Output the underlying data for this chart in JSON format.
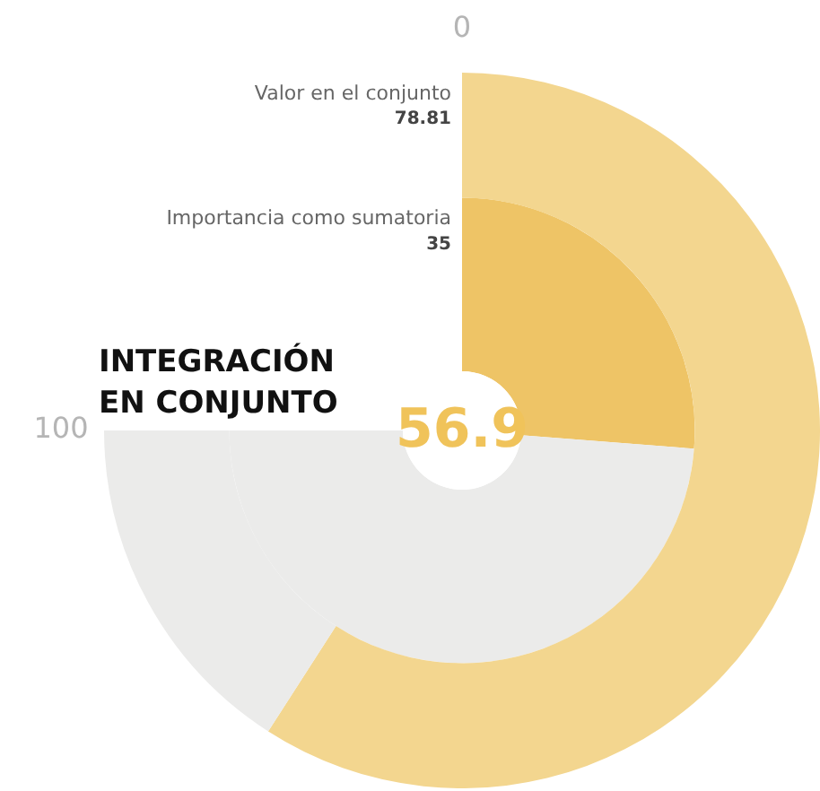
{
  "chart_data": {
    "type": "other",
    "title": "INTEGRACIÓN EN CONJUNTO",
    "categories": [
      "Valor en el conjunto",
      "Importancia como sumatoria"
    ],
    "values": [
      78.81,
      35
    ],
    "colors": [
      "#f3d68f",
      "#eec466"
    ],
    "annotations": [
      "0",
      "100",
      "56.9"
    ],
    "data_labels": true
  }
}
